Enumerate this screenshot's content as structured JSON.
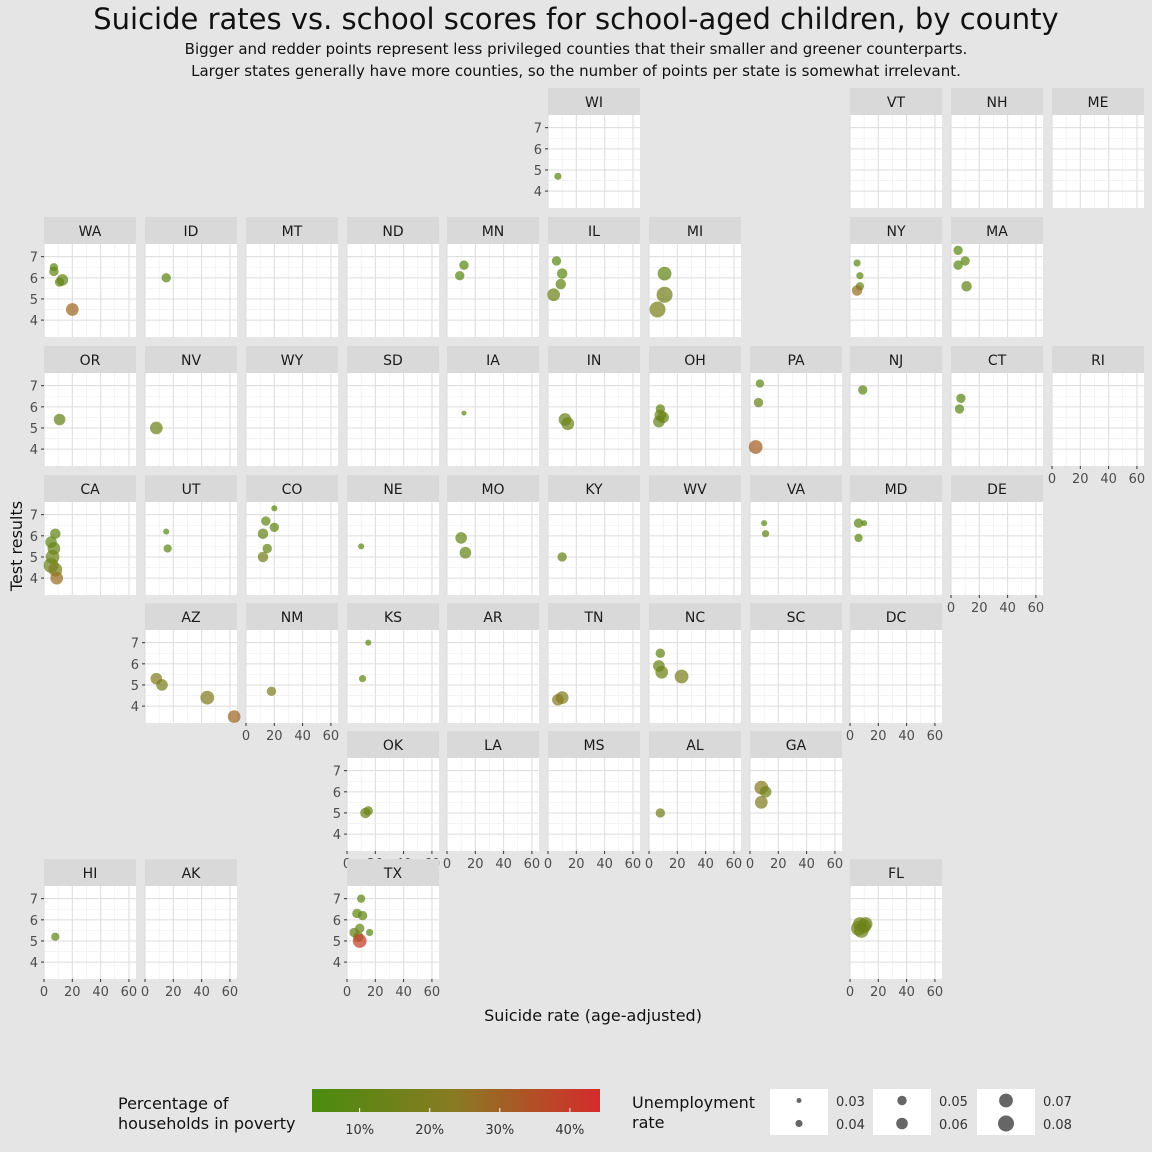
{
  "title": "Suicide rates vs. school scores for school-aged children, by county",
  "subtitle_line1": "Bigger and redder points represent less privileged counties that their smaller and greener counterparts.",
  "subtitle_line2": "Larger states generally have more counties, so the number of points per state is somewhat irrelevant.",
  "chart_data": {
    "type": "scatter",
    "facet": "state grid map",
    "xlabel": "Suicide rate (age-adjusted)",
    "ylabel": "Test results",
    "xlim": [
      0,
      65
    ],
    "ylim": [
      3.2,
      7.6
    ],
    "x_ticks": [
      0,
      20,
      40,
      60
    ],
    "y_ticks": [
      4,
      5,
      6,
      7
    ],
    "grid": true,
    "color_scale": {
      "low": "#4a8c0e",
      "mid": "#8a7a22",
      "high": "#d52b2b",
      "min": 5,
      "max": 45
    },
    "panels": [
      {
        "state": "WI",
        "row": 0,
        "col": 5,
        "points": [
          [
            7,
            4.7,
            12,
            0.04
          ]
        ]
      },
      {
        "state": "VT",
        "row": 0,
        "col": 8,
        "points": []
      },
      {
        "state": "NH",
        "row": 0,
        "col": 9,
        "points": []
      },
      {
        "state": "ME",
        "row": 0,
        "col": 10,
        "points": []
      },
      {
        "state": "WA",
        "row": 1,
        "col": 0,
        "points": [
          [
            7,
            6.5,
            10,
            0.045
          ],
          [
            7,
            6.3,
            12,
            0.05
          ],
          [
            13,
            5.9,
            14,
            0.06
          ],
          [
            11,
            5.8,
            12,
            0.05
          ],
          [
            20,
            4.5,
            30,
            0.065
          ]
        ]
      },
      {
        "state": "ID",
        "row": 1,
        "col": 1,
        "points": [
          [
            15,
            6.0,
            12,
            0.05
          ]
        ]
      },
      {
        "state": "MT",
        "row": 1,
        "col": 2,
        "points": []
      },
      {
        "state": "ND",
        "row": 1,
        "col": 3,
        "points": []
      },
      {
        "state": "MN",
        "row": 1,
        "col": 4,
        "points": [
          [
            12,
            6.6,
            10,
            0.05
          ],
          [
            9,
            6.1,
            10,
            0.05
          ]
        ]
      },
      {
        "state": "IL",
        "row": 1,
        "col": 5,
        "points": [
          [
            6,
            6.8,
            10,
            0.05
          ],
          [
            10,
            6.2,
            11,
            0.055
          ],
          [
            9,
            5.7,
            12,
            0.055
          ],
          [
            4,
            5.2,
            16,
            0.065
          ]
        ]
      },
      {
        "state": "MI",
        "row": 1,
        "col": 6,
        "points": [
          [
            11,
            6.2,
            12,
            0.07
          ],
          [
            11,
            5.2,
            18,
            0.08
          ],
          [
            6,
            4.5,
            20,
            0.08
          ]
        ]
      },
      {
        "state": "NY",
        "row": 1,
        "col": 8,
        "points": [
          [
            5,
            6.7,
            10,
            0.04
          ],
          [
            7,
            6.1,
            10,
            0.04
          ],
          [
            7,
            5.6,
            12,
            0.045
          ],
          [
            5,
            5.4,
            28,
            0.055
          ]
        ]
      },
      {
        "state": "MA",
        "row": 1,
        "col": 9,
        "points": [
          [
            5,
            7.3,
            10,
            0.05
          ],
          [
            5,
            6.6,
            10,
            0.05
          ],
          [
            10,
            6.8,
            11,
            0.05
          ],
          [
            11,
            5.6,
            14,
            0.055
          ]
        ]
      },
      {
        "state": "OR",
        "row": 2,
        "col": 0,
        "points": [
          [
            11,
            5.4,
            14,
            0.06
          ]
        ]
      },
      {
        "state": "NV",
        "row": 2,
        "col": 1,
        "points": [
          [
            8,
            5.0,
            16,
            0.065
          ]
        ]
      },
      {
        "state": "WY",
        "row": 2,
        "col": 2,
        "points": []
      },
      {
        "state": "SD",
        "row": 2,
        "col": 3,
        "points": []
      },
      {
        "state": "IA",
        "row": 2,
        "col": 4,
        "points": [
          [
            12,
            5.7,
            12,
            0.03
          ]
        ]
      },
      {
        "state": "IN",
        "row": 2,
        "col": 5,
        "points": [
          [
            12,
            5.4,
            15,
            0.065
          ],
          [
            14,
            5.2,
            16,
            0.065
          ]
        ]
      },
      {
        "state": "OH",
        "row": 2,
        "col": 6,
        "points": [
          [
            8,
            5.9,
            12,
            0.05
          ],
          [
            8,
            5.6,
            14,
            0.06
          ],
          [
            10,
            5.5,
            15,
            0.06
          ],
          [
            7,
            5.3,
            14,
            0.06
          ]
        ]
      },
      {
        "state": "PA",
        "row": 2,
        "col": 7,
        "points": [
          [
            7,
            7.1,
            11,
            0.045
          ],
          [
            6,
            6.2,
            14,
            0.05
          ],
          [
            4,
            4.1,
            32,
            0.07
          ]
        ]
      },
      {
        "state": "NJ",
        "row": 2,
        "col": 8,
        "points": [
          [
            9,
            6.8,
            12,
            0.05
          ]
        ]
      },
      {
        "state": "CT",
        "row": 2,
        "col": 9,
        "points": [
          [
            7,
            6.4,
            10,
            0.05
          ],
          [
            6,
            5.9,
            10,
            0.05
          ]
        ]
      },
      {
        "state": "RI",
        "row": 2,
        "col": 10,
        "points": []
      },
      {
        "state": "CA",
        "row": 3,
        "col": 0,
        "points": [
          [
            8,
            6.1,
            12,
            0.055
          ],
          [
            5,
            5.7,
            12,
            0.06
          ],
          [
            7,
            5.4,
            14,
            0.065
          ],
          [
            6,
            5.0,
            16,
            0.07
          ],
          [
            5,
            4.6,
            16,
            0.075
          ],
          [
            8,
            4.4,
            20,
            0.07
          ],
          [
            9,
            4.0,
            28,
            0.065
          ]
        ]
      },
      {
        "state": "UT",
        "row": 3,
        "col": 1,
        "points": [
          [
            15,
            6.2,
            10,
            0.035
          ],
          [
            16,
            5.4,
            12,
            0.045
          ]
        ]
      },
      {
        "state": "CO",
        "row": 3,
        "col": 2,
        "points": [
          [
            20,
            7.3,
            10,
            0.035
          ],
          [
            14,
            6.7,
            12,
            0.05
          ],
          [
            20,
            6.4,
            12,
            0.05
          ],
          [
            12,
            6.1,
            14,
            0.055
          ],
          [
            15,
            5.4,
            14,
            0.05
          ],
          [
            12,
            5.0,
            18,
            0.055
          ]
        ]
      },
      {
        "state": "NE",
        "row": 3,
        "col": 3,
        "points": [
          [
            10,
            5.5,
            12,
            0.035
          ]
        ]
      },
      {
        "state": "MO",
        "row": 3,
        "col": 4,
        "points": [
          [
            10,
            5.9,
            14,
            0.06
          ],
          [
            13,
            5.2,
            14,
            0.06
          ]
        ]
      },
      {
        "state": "KY",
        "row": 3,
        "col": 5,
        "points": [
          [
            10,
            5.0,
            14,
            0.05
          ]
        ]
      },
      {
        "state": "WV",
        "row": 3,
        "col": 6,
        "points": []
      },
      {
        "state": "VA",
        "row": 3,
        "col": 7,
        "points": [
          [
            10,
            6.6,
            10,
            0.035
          ],
          [
            11,
            6.1,
            12,
            0.04
          ]
        ]
      },
      {
        "state": "MD",
        "row": 3,
        "col": 8,
        "points": [
          [
            6,
            6.6,
            11,
            0.05
          ],
          [
            10,
            6.6,
            11,
            0.035
          ],
          [
            6,
            5.9,
            12,
            0.045
          ]
        ]
      },
      {
        "state": "DE",
        "row": 3,
        "col": 9,
        "points": []
      },
      {
        "state": "AZ",
        "row": 4,
        "col": 1,
        "points": [
          [
            8,
            5.3,
            24,
            0.06
          ],
          [
            12,
            5.0,
            20,
            0.06
          ],
          [
            44,
            4.4,
            22,
            0.07
          ],
          [
            63,
            3.5,
            30,
            0.065
          ]
        ]
      },
      {
        "state": "NM",
        "row": 4,
        "col": 2,
        "points": [
          [
            18,
            4.7,
            20,
            0.05
          ]
        ]
      },
      {
        "state": "KS",
        "row": 4,
        "col": 3,
        "points": [
          [
            15,
            7.0,
            12,
            0.035
          ],
          [
            11,
            5.3,
            12,
            0.04
          ]
        ]
      },
      {
        "state": "AR",
        "row": 4,
        "col": 4,
        "points": []
      },
      {
        "state": "TN",
        "row": 4,
        "col": 5,
        "points": [
          [
            10,
            4.4,
            22,
            0.065
          ],
          [
            7,
            4.3,
            24,
            0.06
          ]
        ]
      },
      {
        "state": "NC",
        "row": 4,
        "col": 6,
        "points": [
          [
            8,
            6.5,
            12,
            0.05
          ],
          [
            7,
            5.9,
            14,
            0.06
          ],
          [
            9,
            5.6,
            16,
            0.065
          ],
          [
            23,
            5.4,
            20,
            0.07
          ]
        ]
      },
      {
        "state": "SC",
        "row": 4,
        "col": 7,
        "points": []
      },
      {
        "state": "DC",
        "row": 4,
        "col": 8,
        "points": []
      },
      {
        "state": "OK",
        "row": 5,
        "col": 3,
        "points": [
          [
            15,
            5.1,
            14,
            0.05
          ],
          [
            13,
            5.0,
            16,
            0.055
          ]
        ]
      },
      {
        "state": "LA",
        "row": 5,
        "col": 4,
        "points": []
      },
      {
        "state": "MS",
        "row": 5,
        "col": 5,
        "points": []
      },
      {
        "state": "AL",
        "row": 5,
        "col": 6,
        "points": [
          [
            8,
            5.0,
            18,
            0.05
          ]
        ]
      },
      {
        "state": "GA",
        "row": 5,
        "col": 7,
        "points": [
          [
            8,
            6.2,
            24,
            0.07
          ],
          [
            11,
            6.0,
            18,
            0.06
          ],
          [
            8,
            5.5,
            22,
            0.065
          ]
        ]
      },
      {
        "state": "HI",
        "row": 6,
        "col": 0,
        "points": [
          [
            8,
            5.2,
            12,
            0.045
          ]
        ]
      },
      {
        "state": "AK",
        "row": 6,
        "col": 1,
        "points": []
      },
      {
        "state": "TX",
        "row": 6,
        "col": 3,
        "points": [
          [
            10,
            7.0,
            12,
            0.045
          ],
          [
            7,
            6.3,
            12,
            0.05
          ],
          [
            11,
            6.2,
            12,
            0.05
          ],
          [
            16,
            5.4,
            10,
            0.04
          ],
          [
            5,
            5.4,
            14,
            0.05
          ],
          [
            9,
            5.6,
            14,
            0.05
          ],
          [
            8,
            5.2,
            20,
            0.055
          ],
          [
            9,
            5.0,
            40,
            0.07
          ]
        ]
      },
      {
        "state": "FL",
        "row": 6,
        "col": 8,
        "points": [
          [
            7,
            5.8,
            16,
            0.07
          ],
          [
            10,
            5.7,
            18,
            0.07
          ],
          [
            6,
            5.6,
            18,
            0.075
          ],
          [
            8,
            5.5,
            16,
            0.075
          ],
          [
            11,
            5.8,
            16,
            0.07
          ]
        ]
      }
    ],
    "bottom_axis_panels": [
      "HI",
      "AK",
      "NM",
      "OK",
      "LA",
      "MS",
      "AL",
      "GA",
      "TX",
      "FL",
      "DC",
      "RI",
      "DE"
    ],
    "left_axis_panels": [
      "WI",
      "WA",
      "OR",
      "CA",
      "AZ",
      "OK",
      "HI",
      "TX"
    ],
    "legend_color": {
      "title": "Percentage of households in poverty",
      "title_lines": [
        "Percentage of",
        "households in poverty"
      ],
      "ticks": [
        10,
        20,
        30,
        40
      ],
      "tick_labels": [
        "10%",
        "20%",
        "30%",
        "40%"
      ]
    },
    "legend_size": {
      "title": "Unemployment rate",
      "title_lines": [
        "Unemployment",
        "rate"
      ],
      "values": [
        0.03,
        0.04,
        0.05,
        0.06,
        0.07,
        0.08
      ],
      "labels": [
        "0.03",
        "0.04",
        "0.05",
        "0.06",
        "0.07",
        "0.08"
      ]
    }
  }
}
